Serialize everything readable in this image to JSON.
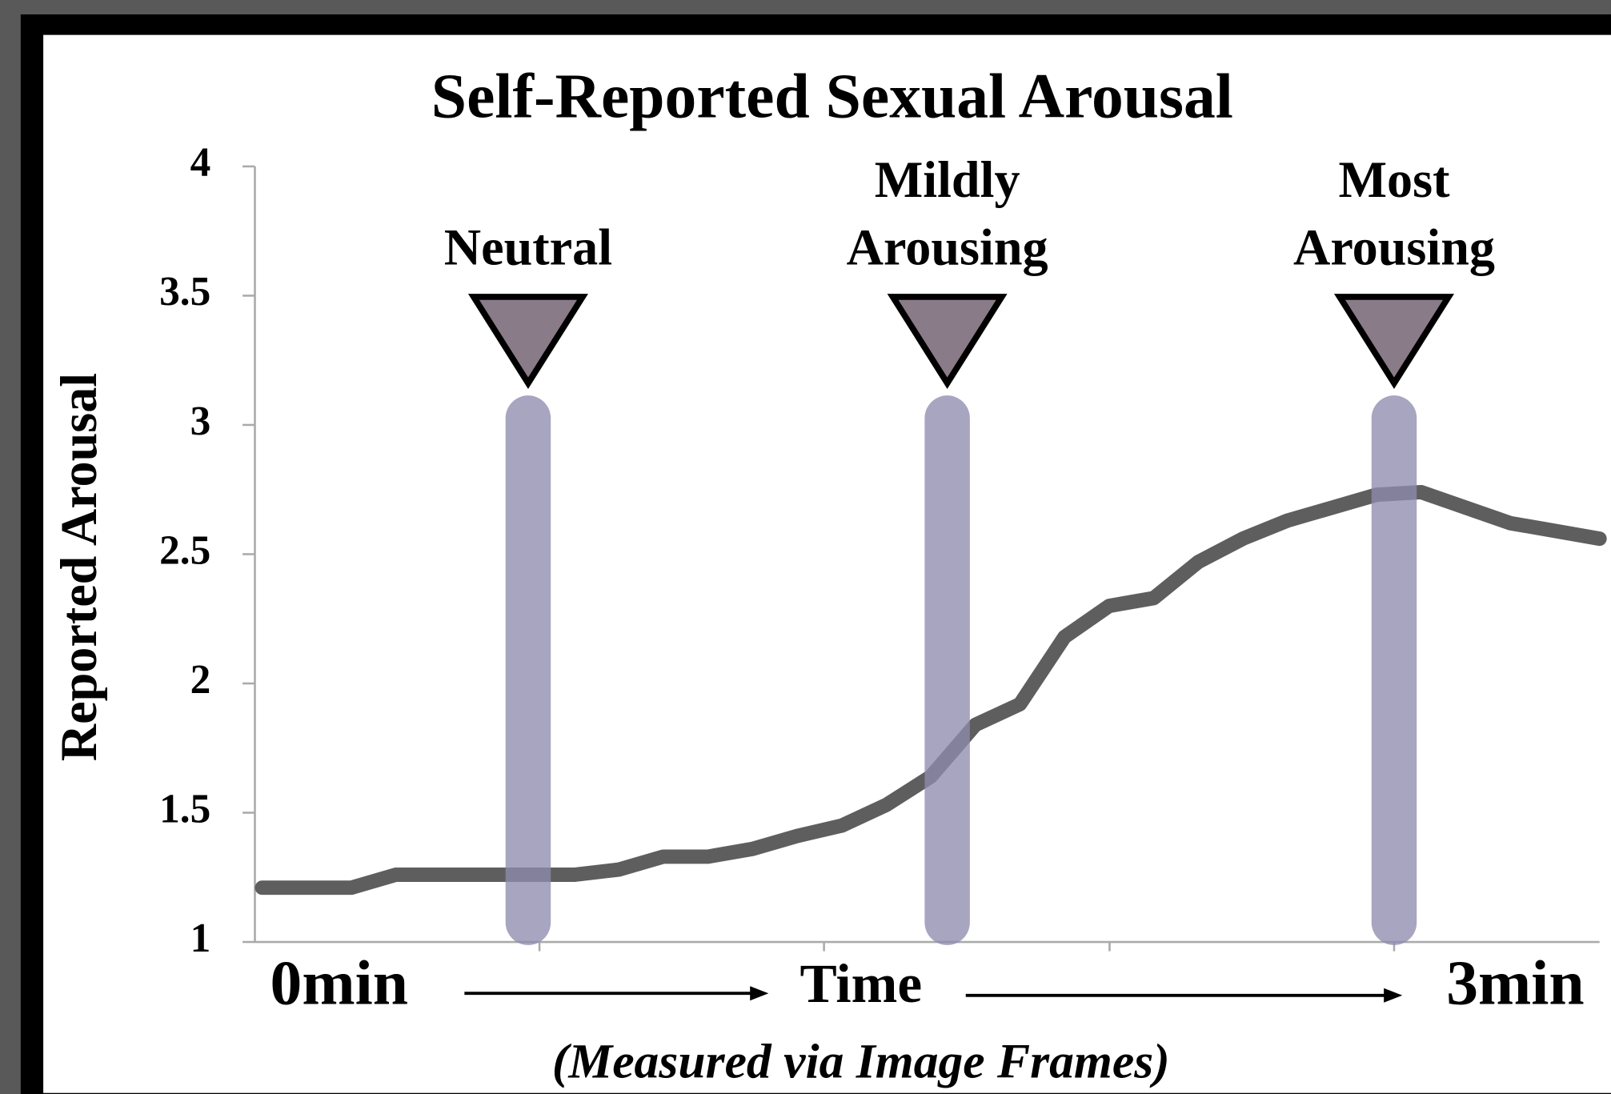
{
  "chart_data": {
    "type": "line",
    "title": "Self-Reported Sexual Arousal",
    "ylabel": "Reported Arousal",
    "x_start_label": "0min",
    "x_label": "Time",
    "x_end_label": "3min",
    "subtitle": "(Measured via Image Frames)",
    "annotations": [
      {
        "lines": [
          "Neutral"
        ]
      },
      {
        "lines": [
          "Mildly",
          "Arousing"
        ]
      },
      {
        "lines": [
          "Most",
          "Arousing"
        ]
      }
    ],
    "ylim": [
      1,
      4
    ],
    "yticks": [
      1,
      1.5,
      2,
      2.5,
      3,
      3.5,
      4
    ],
    "color": "#555555",
    "values": [
      1.21,
      1.21,
      1.21,
      1.26,
      1.26,
      1.26,
      1.26,
      1.26,
      1.28,
      1.33,
      1.33,
      1.36,
      1.41,
      1.45,
      1.53,
      1.64,
      1.84,
      1.92,
      2.18,
      2.3,
      2.33,
      2.47,
      2.56,
      2.63,
      2.68,
      2.73,
      2.74,
      2.68,
      2.62,
      2.59,
      2.56
    ]
  }
}
